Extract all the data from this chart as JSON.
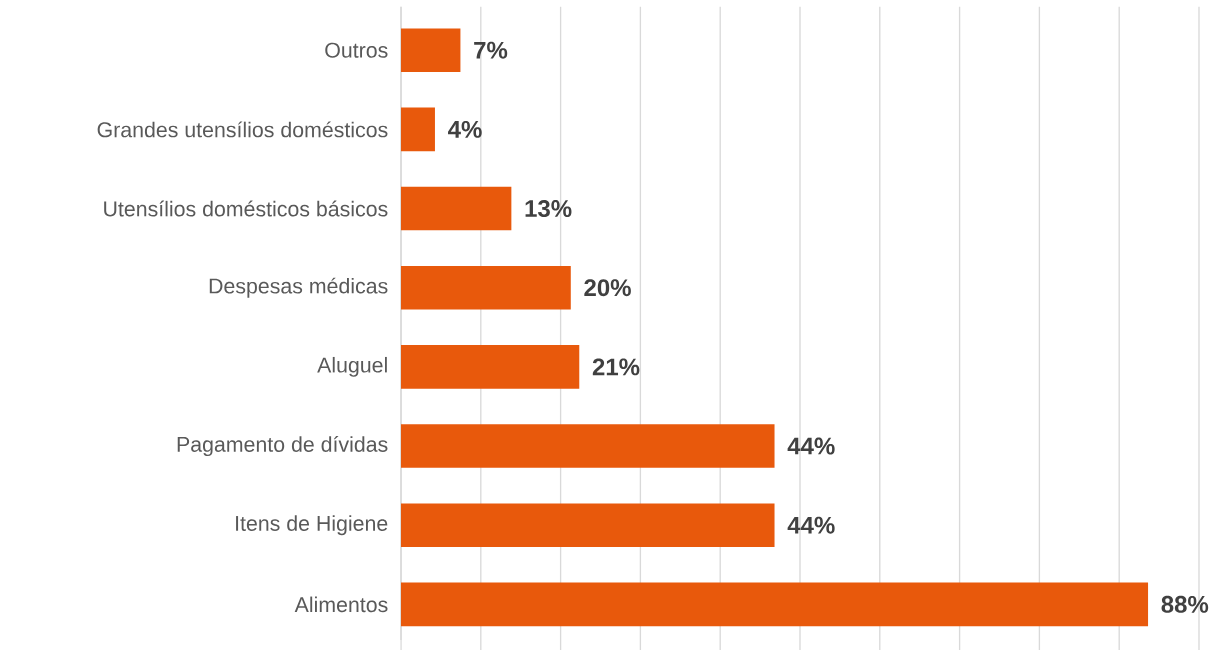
{
  "chart_data": {
    "type": "bar",
    "orientation": "horizontal",
    "categories": [
      "Outros",
      "Grandes utensílios domésticos",
      "Utensílios domésticos básicos",
      "Despesas médicas",
      "Aluguel",
      "Pagamento de dívidas",
      "Itens de Higiene",
      "Alimentos"
    ],
    "values": [
      7,
      4,
      13,
      20,
      21,
      44,
      44,
      88
    ],
    "value_labels": [
      "7%",
      "4%",
      "13%",
      "20%",
      "21%",
      "44%",
      "44%",
      "88%"
    ],
    "color": "#e8590c",
    "xlim": [
      0,
      94
    ],
    "xticks": [
      {
        "value": 0,
        "label": null
      },
      {
        "value": 9.4,
        "label": null
      },
      {
        "value": 18.8,
        "label": null
      },
      {
        "value": 28.2,
        "label": null
      },
      {
        "value": 37.6,
        "label": null
      },
      {
        "value": 47,
        "label": null
      },
      {
        "value": 56.4,
        "label": null
      },
      {
        "value": 65.8,
        "label": null
      },
      {
        "value": 75.2,
        "label": null
      },
      {
        "value": 84.6,
        "label": null
      },
      {
        "value": 94,
        "label": null
      }
    ],
    "tick_labels": "y",
    "grid": "x"
  }
}
